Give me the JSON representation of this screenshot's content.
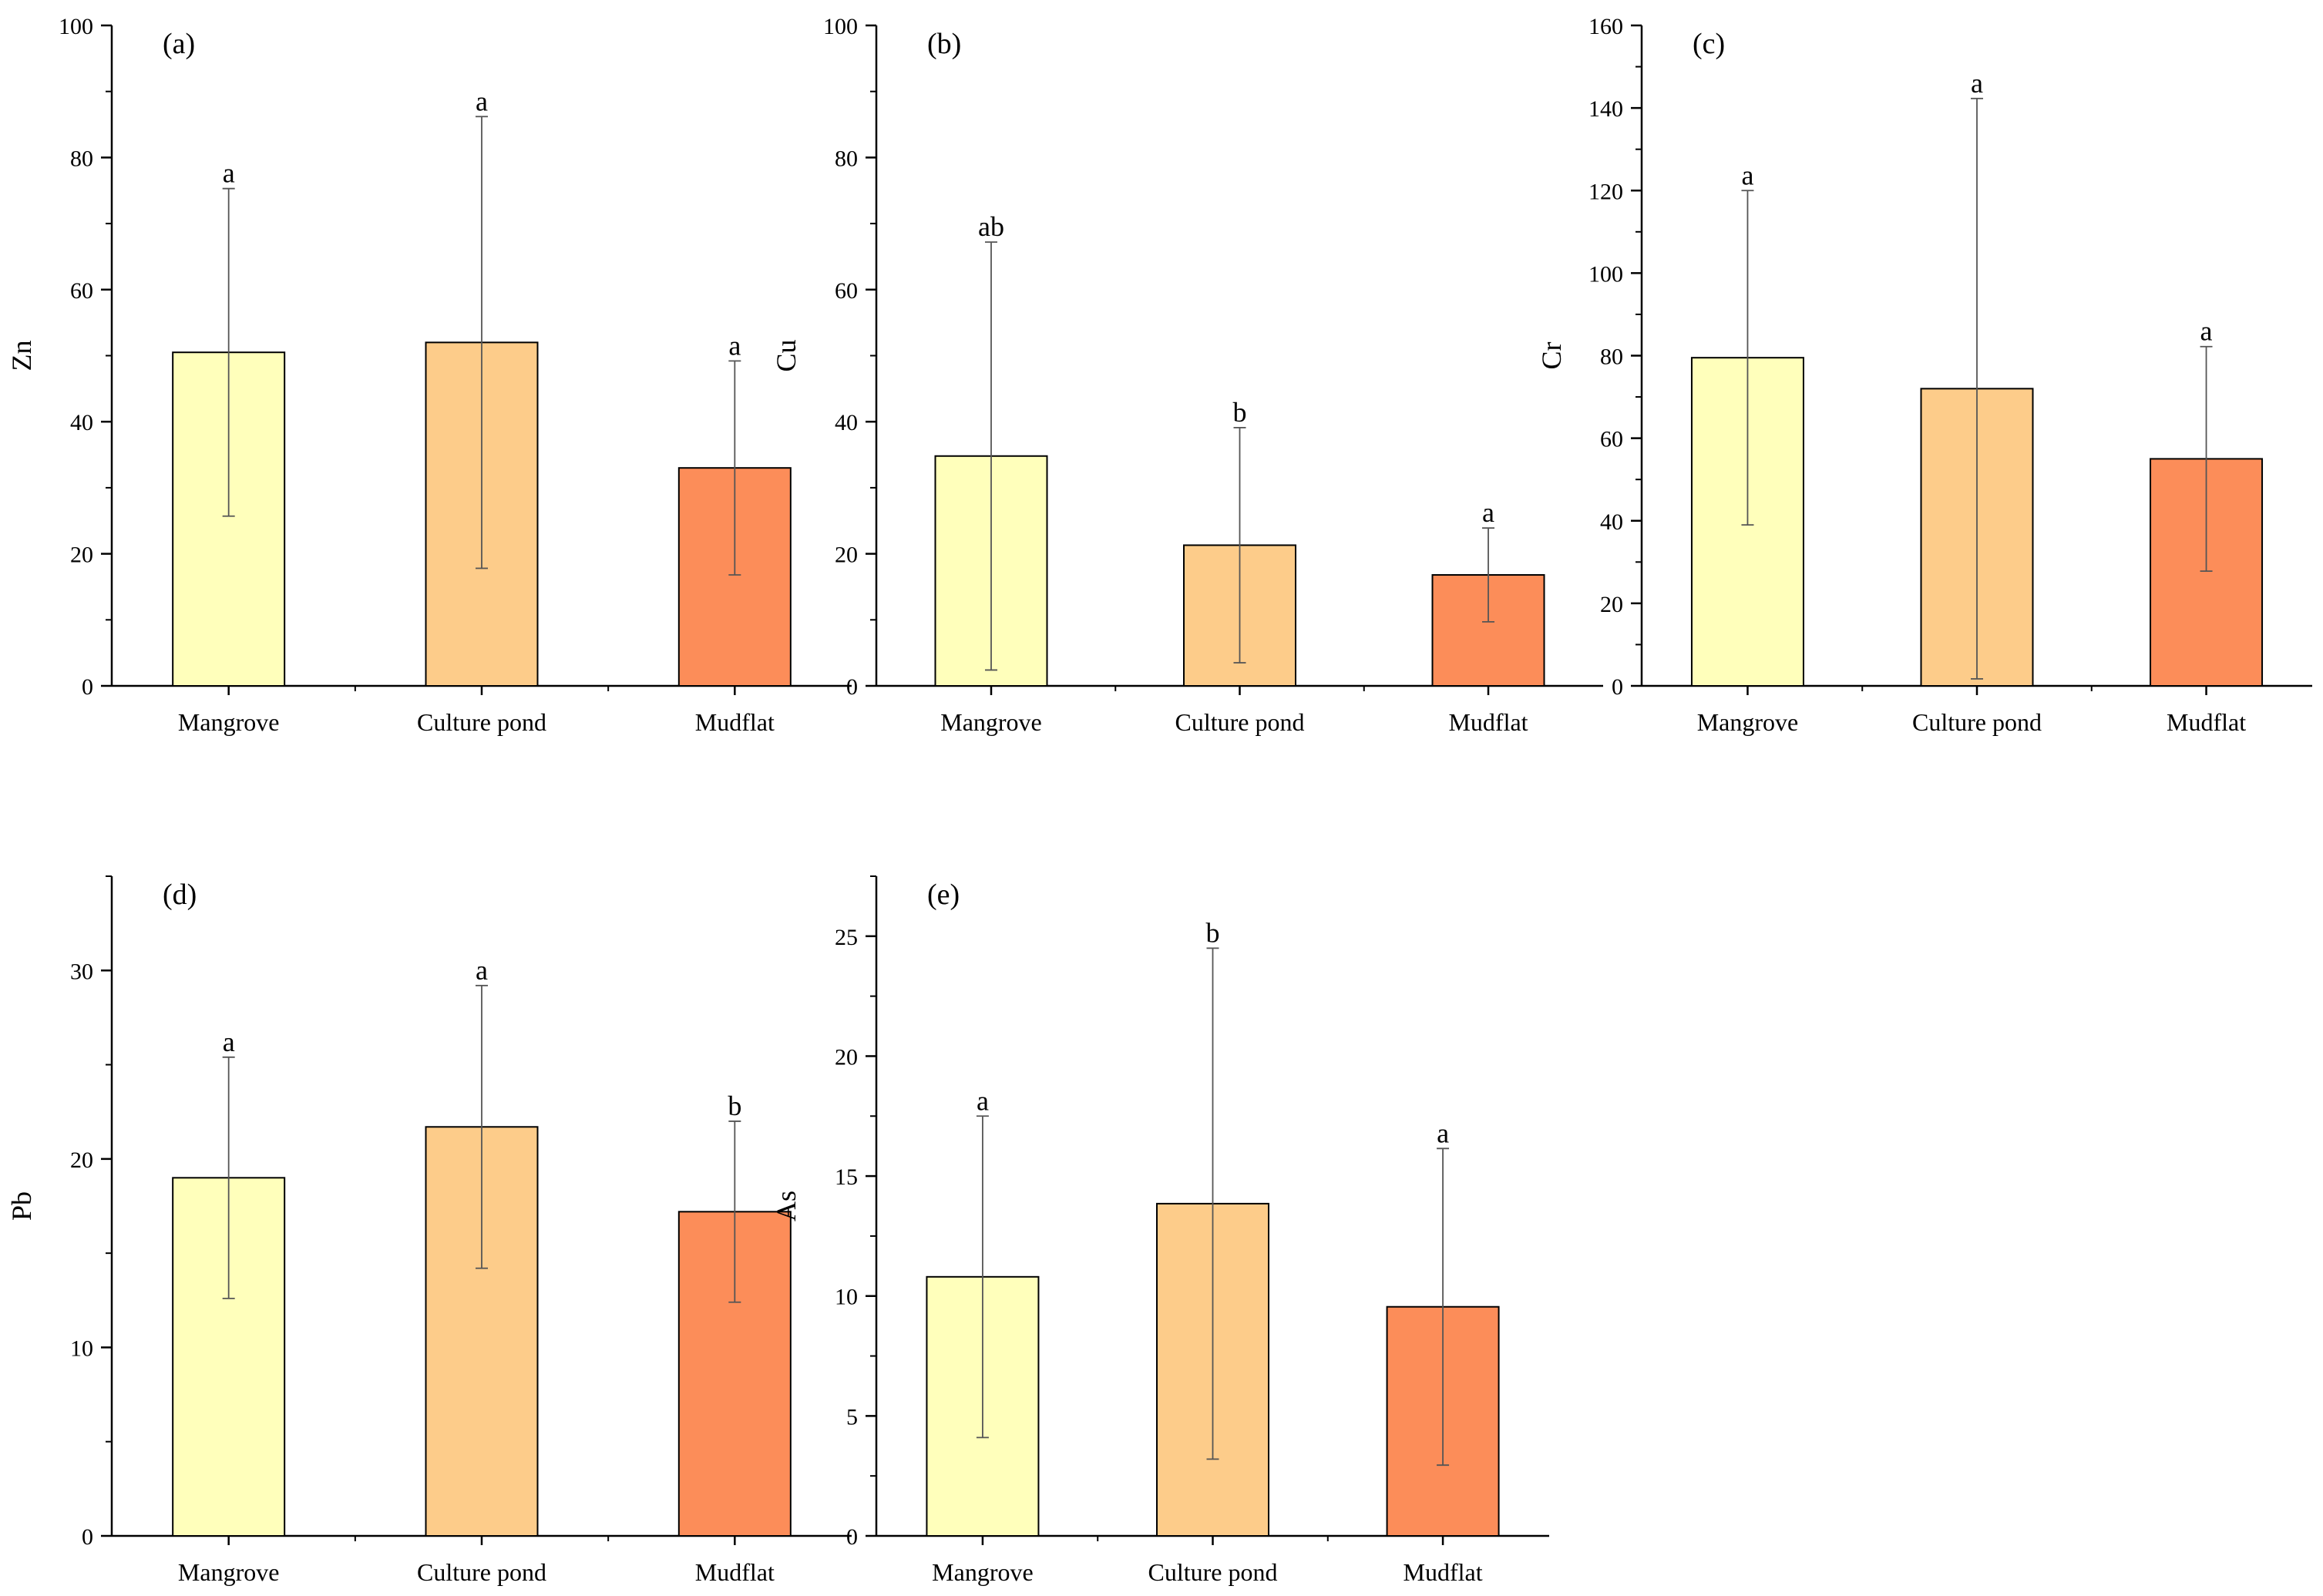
{
  "figure": {
    "categories": [
      "Mangrove",
      "Culture pond",
      "Mudflat"
    ],
    "colors": {
      "Mangrove": "#ffffbb",
      "Culture pond": "#fdcc8a",
      "Mudflat": "#fc8d59",
      "axis": "#000000",
      "error_bar": "#555555"
    }
  },
  "chart_data": [
    {
      "type": "bar",
      "panel": "(a)",
      "ylabel": "Zn",
      "xlabel": "",
      "ylim": [
        0,
        100
      ],
      "yticks": [
        0,
        20,
        40,
        60,
        80,
        100
      ],
      "categories": [
        "Mangrove",
        "Culture pond",
        "Mudflat"
      ],
      "values": [
        50.5,
        52.0,
        33.0
      ],
      "error": [
        24.8,
        34.2,
        16.2
      ],
      "letters": [
        "a",
        "a",
        "a"
      ],
      "grid": false
    },
    {
      "type": "bar",
      "panel": "(b)",
      "ylabel": "Cu",
      "xlabel": "",
      "ylim": [
        0,
        100
      ],
      "yticks": [
        0,
        20,
        40,
        60,
        80,
        100
      ],
      "categories": [
        "Mangrove",
        "Culture pond",
        "Mudflat"
      ],
      "values": [
        34.8,
        21.3,
        16.8
      ],
      "error": [
        32.4,
        17.8,
        7.1
      ],
      "letters": [
        "ab",
        "b",
        "a"
      ],
      "grid": false
    },
    {
      "type": "bar",
      "panel": "(c)",
      "ylabel": "Cr",
      "xlabel": "",
      "ylim": [
        0,
        160
      ],
      "yticks": [
        0,
        20,
        40,
        60,
        80,
        100,
        120,
        140,
        160
      ],
      "categories": [
        "Mangrove",
        "Culture pond",
        "Mudflat"
      ],
      "values": [
        79.5,
        72.0,
        55.0
      ],
      "error": [
        40.5,
        70.3,
        27.2
      ],
      "letters": [
        "a",
        "a",
        "a"
      ],
      "grid": false
    },
    {
      "type": "bar",
      "panel": "(d)",
      "ylabel": "Pb",
      "xlabel": "",
      "ylim": [
        0,
        35
      ],
      "yticks": [
        0,
        10,
        20,
        30
      ],
      "categories": [
        "Mangrove",
        "Culture pond",
        "Mudflat"
      ],
      "values": [
        19.0,
        21.7,
        17.2
      ],
      "error": [
        6.4,
        7.5,
        4.8
      ],
      "letters": [
        "a",
        "a",
        "b"
      ],
      "grid": false
    },
    {
      "type": "bar",
      "panel": "(e)",
      "ylabel": "As",
      "xlabel": "",
      "ylim": [
        0,
        27.5
      ],
      "yticks": [
        0,
        5,
        10,
        15,
        20,
        25
      ],
      "categories": [
        "Mangrove",
        "Culture pond",
        "Mudflat"
      ],
      "values": [
        10.8,
        13.85,
        9.55
      ],
      "error": [
        6.7,
        10.65,
        6.6
      ],
      "letters": [
        "a",
        "b",
        "a"
      ],
      "grid": false
    }
  ]
}
